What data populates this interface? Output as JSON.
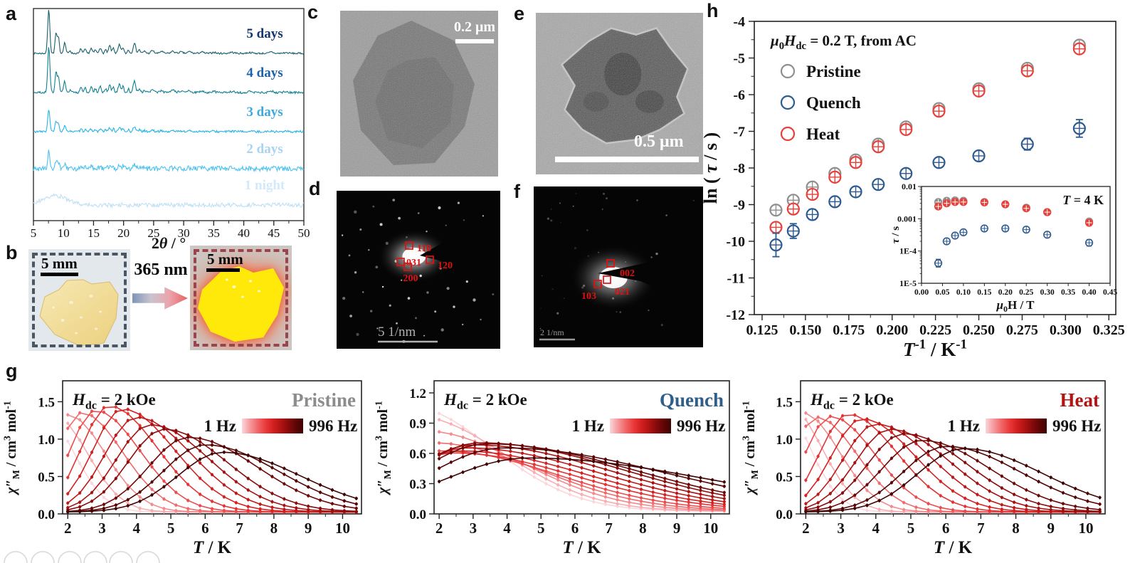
{
  "panel_letters": {
    "a": "a",
    "b": "b",
    "c": "c",
    "d": "d",
    "e": "e",
    "f": "f",
    "g": "g",
    "h": "h"
  },
  "panel_b": {
    "arrow_label": "365 nm",
    "scale_left": "5 mm",
    "scale_right": "5 mm"
  },
  "panel_c": {
    "scale_label": "0.2 μm"
  },
  "panel_d": {
    "scale_label": "5 1/nm",
    "reflections": [
      {
        "label": "110",
        "sq": [
          102,
          77
        ],
        "lab": [
          113,
          85
        ],
        "anchor": "start"
      },
      {
        "label": "031",
        "sq": [
          90,
          100
        ],
        "lab": [
          98,
          105
        ],
        "anchor": "start"
      },
      {
        "label": "120",
        "sq": [
          131,
          97
        ],
        "lab": [
          142,
          109
        ],
        "anchor": "start"
      },
      {
        "label": "200",
        "sq": [
          100,
          107
        ],
        "lab": [
          104,
          127
        ],
        "anchor": "middle"
      }
    ]
  },
  "panel_e": {
    "scale_label": "0.5 μm"
  },
  "panel_f": {
    "scale_label": "2 1/nm",
    "reflections": [
      {
        "label": "002",
        "sq": [
          108,
          108
        ],
        "lab": [
          121,
          126
        ],
        "anchor": "start"
      },
      {
        "label": "021",
        "sq": [
          103,
          131
        ],
        "lab": [
          114,
          152
        ],
        "anchor": "start"
      },
      {
        "label": "103",
        "sq": [
          90,
          137
        ],
        "lab": [
          88,
          158
        ],
        "anchor": "end"
      }
    ]
  },
  "chart_data": [
    {
      "id": "panel-a-xrd",
      "type": "line",
      "title": "",
      "xlabel": "2*θ* / °",
      "ylabel": "",
      "xlim": [
        5,
        50
      ],
      "xticks": [
        5,
        10,
        15,
        20,
        25,
        30,
        35,
        40,
        45,
        50
      ],
      "grid": false,
      "peaks_2theta": [
        [
          7.55,
          62,
          0.18
        ],
        [
          8.75,
          28,
          0.16
        ],
        [
          9.15,
          22,
          0.16
        ],
        [
          10.2,
          15,
          0.18
        ],
        [
          11.1,
          4,
          0.15
        ],
        [
          12.9,
          7,
          0.15
        ],
        [
          13.6,
          6,
          0.15
        ],
        [
          14.6,
          7,
          0.18
        ],
        [
          15.3,
          5,
          0.15
        ],
        [
          16.1,
          8,
          0.18
        ],
        [
          17.0,
          5,
          0.15
        ],
        [
          17.7,
          11,
          0.18
        ],
        [
          18.3,
          8,
          0.15
        ],
        [
          19.3,
          12,
          0.2
        ],
        [
          19.9,
          8,
          0.15
        ],
        [
          20.8,
          5,
          0.15
        ],
        [
          21.8,
          15,
          0.2
        ],
        [
          22.6,
          5,
          0.2
        ],
        [
          23.5,
          3,
          0.2
        ],
        [
          24.8,
          4,
          0.25
        ],
        [
          26.3,
          3,
          0.25
        ],
        [
          28.2,
          3,
          0.3
        ],
        [
          29.5,
          2,
          0.3
        ],
        [
          31,
          2.5,
          0.3
        ],
        [
          33,
          2,
          0.3
        ],
        [
          35,
          1.5,
          0.3
        ],
        [
          38,
          1.5,
          0.4
        ],
        [
          41,
          1.2,
          0.4
        ],
        [
          44.6,
          2,
          0.3
        ],
        [
          47,
          1,
          0.4
        ]
      ],
      "series": [
        {
          "label": "5 days",
          "color": "#17606a",
          "label_color": "#14366e",
          "baseline": 75,
          "peak_scale": 1.0,
          "noise": 1.2
        },
        {
          "label": "4 days",
          "color": "#10818f",
          "label_color": "#1d61ab",
          "baseline": 130,
          "peak_scale": 1.05,
          "noise": 1.5
        },
        {
          "label": "3 days",
          "color": "#27b4e4",
          "label_color": "#3fa9de",
          "baseline": 185,
          "peak_scale": 0.5,
          "noise": 1.5
        },
        {
          "label": "2 days",
          "color": "#4cc2ef",
          "label_color": "#a8d4f2",
          "baseline": 237,
          "peak_scale": 0.38,
          "noise": 3.4
        },
        {
          "label": "1 night",
          "color": "#bfe0f5",
          "label_color": "#d3e9fa",
          "baseline": 288,
          "peak_scale": 0,
          "noise": 3.0,
          "hump": [
            8.6,
            13,
            2.1
          ]
        }
      ]
    },
    {
      "id": "panel-h-main",
      "type": "scatter",
      "xlabel": "*T*^-1^ /  K^-1^",
      "ylabel": "ln ( *τ* / s )",
      "legend_title": "*μ*~0~*H*~dc~ = 0.2 T, from AC",
      "legend_order": [
        "Pristine",
        "Quench",
        "Heat"
      ],
      "xlim": [
        0.1205,
        0.329
      ],
      "ylim": [
        -12,
        -4
      ],
      "xticks": [
        0.125,
        0.15,
        0.175,
        0.2,
        0.225,
        0.25,
        0.275,
        0.3,
        0.325
      ],
      "yticks": [
        -4,
        -5,
        -6,
        -7,
        -8,
        -9,
        -10,
        -11,
        -12
      ],
      "x": [
        0.133,
        0.143,
        0.154,
        0.167,
        0.179,
        0.192,
        0.208,
        0.227,
        0.25,
        0.278,
        0.308
      ],
      "series": [
        {
          "name": "Pristine",
          "color": "#8f8f8f",
          "y": [
            -9.15,
            -8.88,
            -8.52,
            -8.15,
            -7.78,
            -7.35,
            -6.88,
            -6.38,
            -5.84,
            -5.28,
            -4.65
          ],
          "err": [
            0.08,
            0.08,
            0.07,
            0.06,
            0.06,
            0.06,
            0.06,
            0.06,
            0.06,
            0.07,
            0.1
          ]
        },
        {
          "name": "Heat",
          "color": "#e8403a",
          "y": [
            -9.62,
            -9.12,
            -8.72,
            -8.25,
            -7.85,
            -7.42,
            -6.95,
            -6.45,
            -5.9,
            -5.35,
            -4.75
          ],
          "err": [
            0.1,
            0.09,
            0.08,
            0.07,
            0.06,
            0.06,
            0.06,
            0.06,
            0.06,
            0.08,
            0.12
          ]
        },
        {
          "name": "Quench",
          "color": "#2e5b8f",
          "y": [
            -10.1,
            -9.72,
            -9.27,
            -8.92,
            -8.65,
            -8.45,
            -8.15,
            -7.85,
            -7.67,
            -7.35,
            -6.92
          ],
          "err": [
            0.32,
            0.2,
            0.14,
            0.1,
            0.08,
            0.07,
            0.06,
            0.06,
            0.05,
            0.16,
            0.24
          ]
        }
      ]
    },
    {
      "id": "panel-h-inset",
      "type": "scatter",
      "xlabel": "*μ*~0~H / T",
      "ylabel": "*τ* / s",
      "annotation": "*T* = 4 K",
      "xlim": [
        0,
        0.45
      ],
      "ylog": true,
      "ylim": [
        1e-05,
        0.01
      ],
      "xticks": [
        0,
        0.05,
        0.1,
        0.15,
        0.2,
        0.25,
        0.3,
        0.35,
        0.4,
        0.45
      ],
      "ytick_labels": [
        "0.01",
        "0.001",
        "1E-4",
        "1E-5"
      ],
      "x": [
        0.04,
        0.06,
        0.08,
        0.1,
        0.15,
        0.2,
        0.25,
        0.3,
        0.4
      ],
      "series": [
        {
          "name": "Pristine",
          "color": "#8f8f8f",
          "filled": true,
          "y": [
            0.0033,
            0.0036,
            0.0037,
            0.0036,
            0.0033,
            0.0028,
            0.0022,
            0.0016,
            0.00082
          ],
          "err": [
            0.05,
            0.05,
            0.05,
            0.05,
            0.05,
            0.05,
            0.05,
            0.05,
            0.06
          ]
        },
        {
          "name": "Heat",
          "color": "#e8403a",
          "filled": true,
          "y": [
            0.0024,
            0.003,
            0.0033,
            0.0033,
            0.0032,
            0.0028,
            0.0021,
            0.0016,
            0.00075
          ],
          "err": [
            0.06,
            0.05,
            0.05,
            0.05,
            0.05,
            0.05,
            0.05,
            0.05,
            0.06
          ]
        },
        {
          "name": "Quench",
          "color": "#2e5b8f",
          "filled": false,
          "y": [
            4.2e-05,
            0.0002,
            0.0003,
            0.00038,
            0.0005,
            0.0005,
            0.00046,
            0.00032,
            0.00018
          ],
          "err": [
            0.12,
            0.07,
            0.06,
            0.05,
            0.05,
            0.05,
            0.05,
            0.06,
            0.1
          ]
        }
      ]
    },
    {
      "id": "g-pristine",
      "type": "line",
      "corner_label": "Pristine",
      "corner_color": "#8c8c8c",
      "field_label": "*H*~dc~ = 2 kOe",
      "freq_low": "1 Hz",
      "freq_high": "996 Hz",
      "xlabel": "*T* / K",
      "ylabel": "*χ″*~M~ / cm^3^ mol^-1^",
      "xlim": [
        1.85,
        10.55
      ],
      "xticks": [
        2,
        3,
        4,
        5,
        6,
        7,
        8,
        9,
        10
      ],
      "ylim": [
        0,
        1.78
      ],
      "yticks": [
        0.0,
        0.5,
        1.0,
        1.5
      ],
      "width_model": {
        "w0": 0.32,
        "w1": 0.15,
        "tail": 1.75
      },
      "color_ramp": [
        "#fbd6da",
        "#f59a9e",
        "#f06a6c",
        "#ea3c3d",
        "#d62121",
        "#b31414",
        "#8a0b0b",
        "#5f0505",
        "#3f0303"
      ],
      "series": [
        {
          "peak_T": 1.3,
          "peak_chi": 1.28
        },
        {
          "peak_T": 1.6,
          "peak_chi": 1.29
        },
        {
          "peak_T": 2.0,
          "peak_chi": 1.3
        },
        {
          "peak_T": 2.4,
          "peak_chi": 1.33
        },
        {
          "peak_T": 2.8,
          "peak_chi": 1.36
        },
        {
          "peak_T": 3.2,
          "peak_chi": 1.42
        },
        {
          "peak_T": 3.6,
          "peak_chi": 1.38
        },
        {
          "peak_T": 4.0,
          "peak_chi": 1.27
        },
        {
          "peak_T": 4.4,
          "peak_chi": 1.17
        },
        {
          "peak_T": 4.8,
          "peak_chi": 1.11
        },
        {
          "peak_T": 5.5,
          "peak_chi": 1.0
        },
        {
          "peak_T": 6.0,
          "peak_chi": 0.9
        },
        {
          "peak_T": 6.5,
          "peak_chi": 0.8
        }
      ]
    },
    {
      "id": "g-quench",
      "type": "line",
      "corner_label": "Quench",
      "corner_color": "#2e5f8a",
      "field_label": "*H*~dc~ = 2 kOe",
      "freq_low": "1 Hz",
      "freq_high": "996 Hz",
      "xlabel": "*T* / K",
      "ylabel": "*χ″*~M~ / cm^3^ mol^-1^",
      "xlim": [
        1.85,
        10.55
      ],
      "xticks": [
        2,
        3,
        4,
        5,
        6,
        7,
        8,
        9,
        10
      ],
      "ylim": [
        0,
        1.32
      ],
      "yticks": [
        0.0,
        0.3,
        0.6,
        0.9,
        1.2
      ],
      "width_model": {
        "w0": 0.8,
        "w1": 0.35,
        "tail": 2.2
      },
      "color_ramp": [
        "#fbd6da",
        "#f59a9e",
        "#f06a6c",
        "#ea3c3d",
        "#d62121",
        "#b31414",
        "#8a0b0b",
        "#5f0505",
        "#3f0303"
      ],
      "series": [
        {
          "peak_T": 1.0,
          "peak_chi": 1.05
        },
        {
          "peak_T": 1.2,
          "peak_chi": 0.95
        },
        {
          "peak_T": 1.5,
          "peak_chi": 0.8
        },
        {
          "peak_T": 1.8,
          "peak_chi": 0.68
        },
        {
          "peak_T": 2.1,
          "peak_chi": 0.6
        },
        {
          "peak_T": 2.4,
          "peak_chi": 0.58
        },
        {
          "peak_T": 2.6,
          "peak_chi": 0.6
        },
        {
          "peak_T": 2.8,
          "peak_chi": 0.63
        },
        {
          "peak_T": 3.0,
          "peak_chi": 0.66
        },
        {
          "peak_T": 3.2,
          "peak_chi": 0.68
        },
        {
          "peak_T": 3.4,
          "peak_chi": 0.67
        },
        {
          "peak_T": 3.9,
          "peak_chi": 0.63
        },
        {
          "peak_T": 4.6,
          "peak_chi": 0.53
        }
      ]
    },
    {
      "id": "g-heat",
      "type": "line",
      "corner_label": "Heat",
      "corner_color": "#b01414",
      "field_label": "*H*~dc~ = 2 kOe",
      "freq_low": "1 Hz",
      "freq_high": "996 Hz",
      "xlabel": "*T* / K",
      "ylabel": "*χ″*~M~ / cm^3^ mol^-1^",
      "xlim": [
        1.85,
        10.55
      ],
      "xticks": [
        2,
        3,
        4,
        5,
        6,
        7,
        8,
        9,
        10
      ],
      "ylim": [
        0,
        1.78
      ],
      "yticks": [
        0.0,
        0.5,
        1.0,
        1.5
      ],
      "width_model": {
        "w0": 0.32,
        "w1": 0.15,
        "tail": 1.75
      },
      "color_ramp": [
        "#fbd6da",
        "#f59a9e",
        "#f06a6c",
        "#ea3c3d",
        "#d62121",
        "#b31414",
        "#8a0b0b",
        "#5f0505",
        "#3f0303"
      ],
      "series": [
        {
          "peak_T": 1.2,
          "peak_chi": 1.5
        },
        {
          "peak_T": 1.5,
          "peak_chi": 1.42
        },
        {
          "peak_T": 1.9,
          "peak_chi": 1.33
        },
        {
          "peak_T": 2.3,
          "peak_chi": 1.27
        },
        {
          "peak_T": 2.7,
          "peak_chi": 1.28
        },
        {
          "peak_T": 3.2,
          "peak_chi": 1.31
        },
        {
          "peak_T": 3.6,
          "peak_chi": 1.25
        },
        {
          "peak_T": 4.0,
          "peak_chi": 1.18
        },
        {
          "peak_T": 4.4,
          "peak_chi": 1.11
        },
        {
          "peak_T": 4.8,
          "peak_chi": 1.05
        },
        {
          "peak_T": 5.3,
          "peak_chi": 0.96
        },
        {
          "peak_T": 6.0,
          "peak_chi": 0.88
        },
        {
          "peak_T": 6.5,
          "peak_chi": 0.85
        }
      ]
    }
  ]
}
